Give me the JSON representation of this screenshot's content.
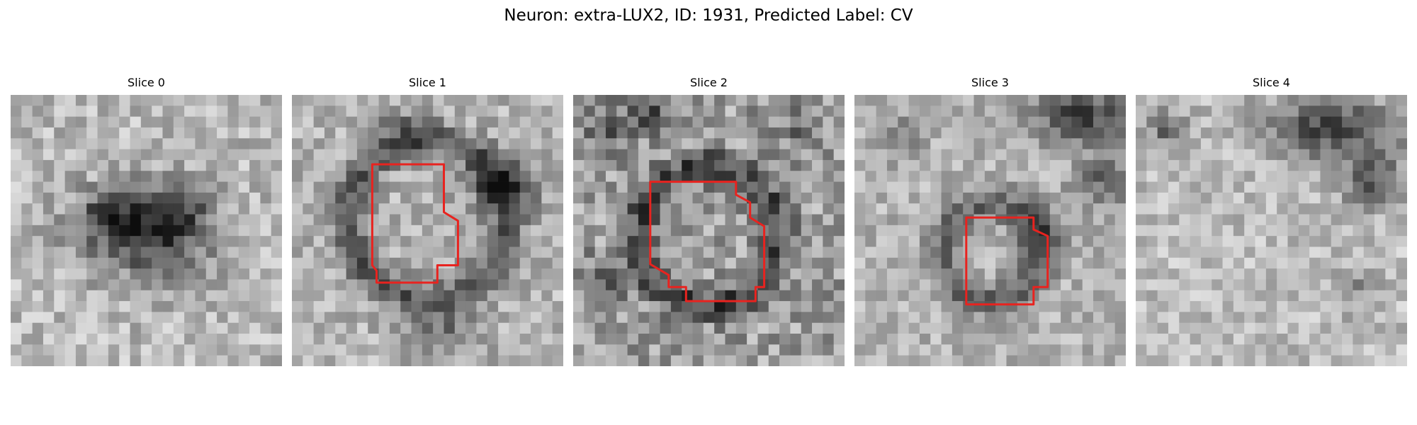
{
  "figure": {
    "title": "Neuron: extra-LUX2, ID: 1931, Predicted Label: CV"
  },
  "colors": {
    "contour": "#e8231f",
    "background": "#ffffff"
  },
  "panels": [
    {
      "title": "Slice 0",
      "has_contour": false
    },
    {
      "title": "Slice 1",
      "has_contour": true
    },
    {
      "title": "Slice 2",
      "has_contour": true
    },
    {
      "title": "Slice 3",
      "has_contour": true
    },
    {
      "title": "Slice 4",
      "has_contour": false
    }
  ]
}
